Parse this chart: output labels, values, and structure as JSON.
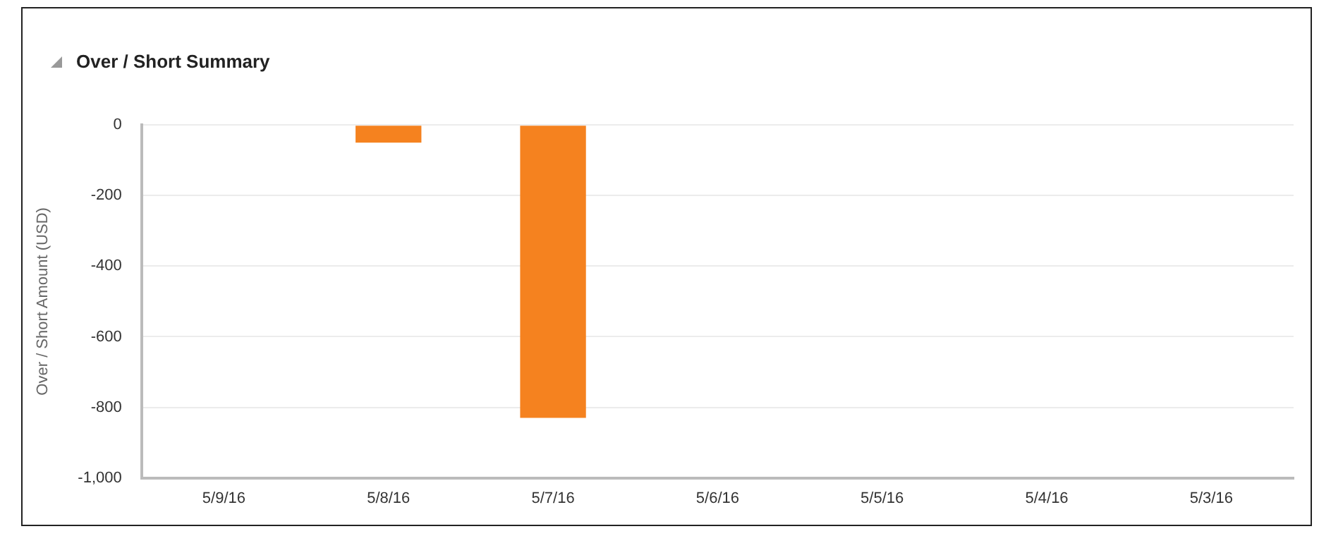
{
  "chart_data": {
    "type": "bar",
    "title": "Over / Short Summary",
    "ylabel": "Over / Short Amount (USD)",
    "categories": [
      "5/9/16",
      "5/8/16",
      "5/7/16",
      "5/6/16",
      "5/5/16",
      "5/4/16",
      "5/3/16"
    ],
    "values": [
      0,
      -50,
      -830,
      0,
      0,
      0,
      0
    ],
    "color": "#f5821f",
    "ylim": [
      -1000,
      0
    ],
    "yticks": [
      0,
      -200,
      -400,
      -600,
      -800,
      {
        "value": -1000,
        "label": "-1,000"
      }
    ],
    "grid": "y"
  }
}
